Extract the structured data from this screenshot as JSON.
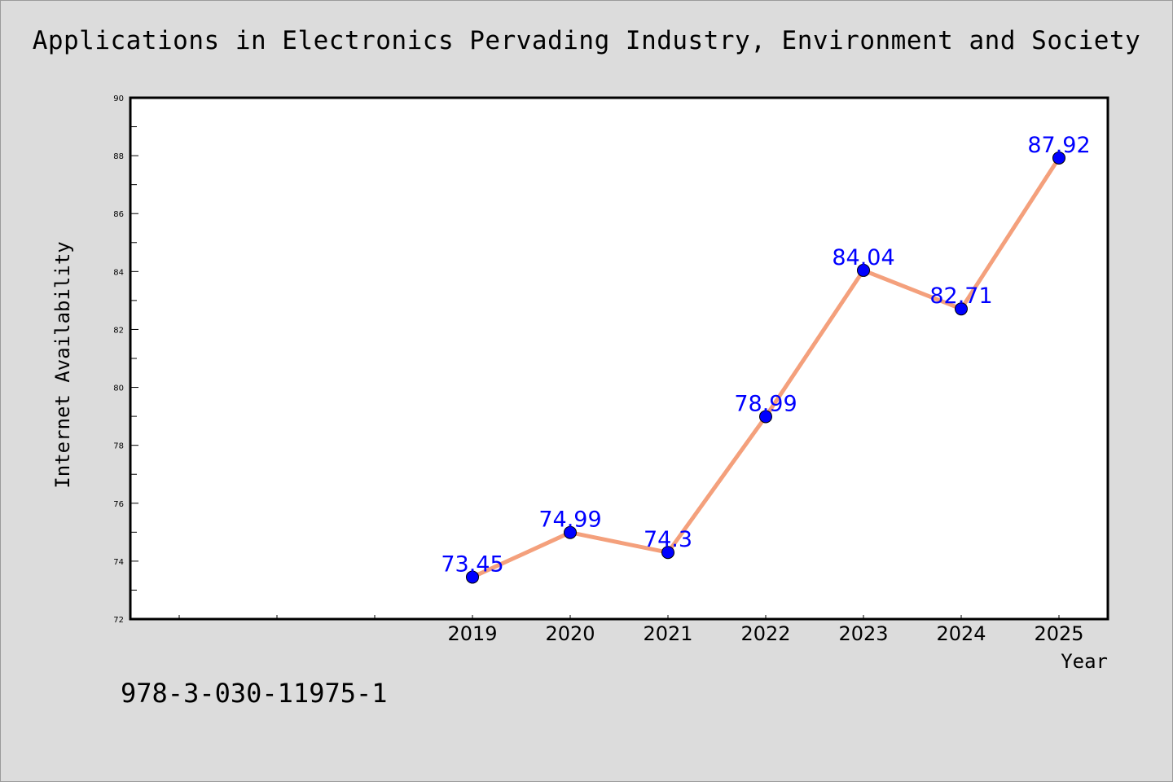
{
  "chart_data": {
    "type": "line",
    "title": "Applications in Electronics Pervading Industry, Environment and Society",
    "xlabel": "Year",
    "ylabel": "Internet Availability",
    "x": [
      "2019",
      "2020",
      "2021",
      "2022",
      "2023",
      "2024",
      "2025"
    ],
    "series": [
      {
        "values": [
          73.45,
          74.99,
          74.3,
          78.99,
          84.04,
          82.71,
          87.92
        ],
        "data_labels": [
          "73.45",
          "74.99",
          "74.3",
          "78.99",
          "84.04",
          "82.71",
          "87.92"
        ],
        "line_color": "#f4a07c",
        "marker_color": "#0000ff"
      }
    ],
    "ylim": [
      72,
      90
    ],
    "yticks": [
      "72",
      "74",
      "76",
      "78",
      "80",
      "82",
      "84",
      "86",
      "88",
      "90"
    ],
    "grid": false,
    "legend": "none"
  },
  "footer_text": "978-3-030-11975-1",
  "colors": {
    "background": "#dcdcdc",
    "plot_background": "#ffffff",
    "line": "#f4a07c",
    "marker": "#0000ff",
    "data_label": "#0000ff"
  }
}
